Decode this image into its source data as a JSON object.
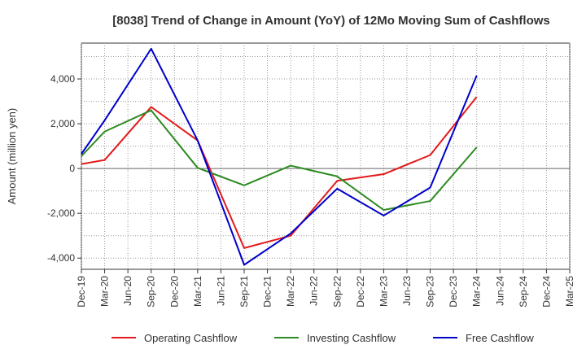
{
  "chart_data": {
    "type": "line",
    "title": "[8038]  Trend of Change in Amount (YoY) of 12Mo Moving Sum of Cashflows",
    "xlabel": "",
    "ylabel": "Amount (million yen)",
    "ylim": [
      -4500,
      5600
    ],
    "yticks": [
      4000,
      2000,
      0,
      -2000,
      -4000
    ],
    "ytick_labels": [
      "4,000",
      "2,000",
      "0",
      "-2,000",
      "-4,000"
    ],
    "categories": [
      "Dec-19",
      "Mar-20",
      "Jun-20",
      "Sep-20",
      "Dec-20",
      "Mar-21",
      "Jun-21",
      "Sep-21",
      "Dec-21",
      "Mar-22",
      "Jun-22",
      "Sep-22",
      "Dec-22",
      "Mar-23",
      "Jun-23",
      "Sep-23",
      "Dec-23",
      "Mar-24",
      "Jun-24",
      "Sep-24",
      "Dec-24",
      "Mar-25"
    ],
    "legend_position": "bottom",
    "grid": true,
    "series": [
      {
        "name": "Operating Cashflow",
        "color": "#e31a1c",
        "points": [
          [
            0,
            200
          ],
          [
            1,
            380
          ],
          [
            3,
            2750
          ],
          [
            5,
            1250
          ],
          [
            7,
            -3550
          ],
          [
            9,
            -3000
          ],
          [
            11,
            -550
          ],
          [
            13,
            -250
          ],
          [
            15,
            600
          ],
          [
            17,
            3200
          ]
        ]
      },
      {
        "name": "Investing Cashflow",
        "color": "#2e8b22",
        "points": [
          [
            0,
            550
          ],
          [
            1,
            1650
          ],
          [
            3,
            2600
          ],
          [
            5,
            30
          ],
          [
            7,
            -750
          ],
          [
            9,
            130
          ],
          [
            11,
            -350
          ],
          [
            13,
            -1850
          ],
          [
            15,
            -1450
          ],
          [
            17,
            950
          ]
        ]
      },
      {
        "name": "Free Cashflow",
        "color": "#0000cc",
        "points": [
          [
            0,
            650
          ],
          [
            1,
            2150
          ],
          [
            3,
            5350
          ],
          [
            5,
            1250
          ],
          [
            7,
            -4300
          ],
          [
            9,
            -2900
          ],
          [
            11,
            -900
          ],
          [
            13,
            -2100
          ],
          [
            15,
            -850
          ],
          [
            17,
            4150
          ]
        ]
      }
    ]
  }
}
